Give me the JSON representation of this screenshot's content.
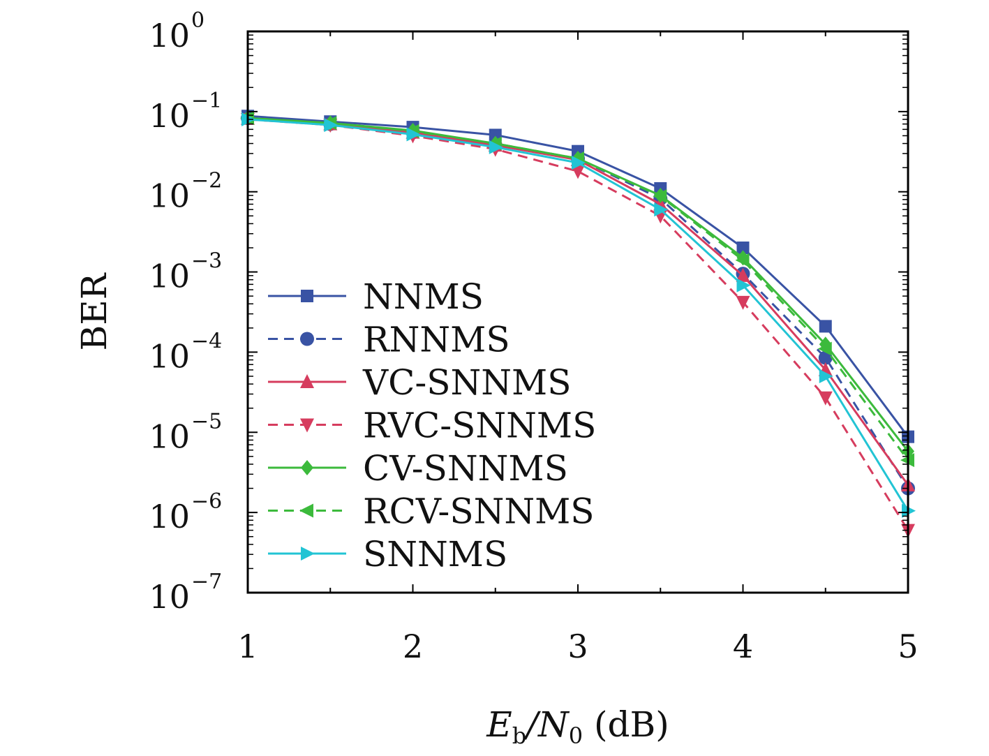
{
  "chart_data": {
    "type": "line",
    "title": "",
    "xlabel": {
      "main": "E",
      "sub": "b",
      "sep": "/N",
      "sub2": "0",
      "unit": " (dB)"
    },
    "ylabel": "BER",
    "yscale": "log",
    "xlim": [
      1,
      5
    ],
    "ylim": [
      1e-07,
      1
    ],
    "xticks": [
      "1",
      "2",
      "3",
      "4",
      "5"
    ],
    "yticks": [
      {
        "base": "10",
        "exp": "0"
      },
      {
        "base": "10",
        "exp": "−1"
      },
      {
        "base": "10",
        "exp": "−2"
      },
      {
        "base": "10",
        "exp": "−3"
      },
      {
        "base": "10",
        "exp": "−4"
      },
      {
        "base": "10",
        "exp": "−5"
      },
      {
        "base": "10",
        "exp": "−6"
      },
      {
        "base": "10",
        "exp": "−7"
      }
    ],
    "grid": false,
    "legend_position": "lower-left",
    "x": [
      1,
      1.5,
      2,
      2.5,
      3,
      3.5,
      4,
      4.5,
      5
    ],
    "series": [
      {
        "name": "NNMS",
        "color": "#3953a4",
        "dash": "solid",
        "marker": "square",
        "values": [
          0.088,
          0.075,
          0.064,
          0.051,
          0.032,
          0.011,
          0.002,
          0.00021,
          8.8e-06
        ]
      },
      {
        "name": "RNNMS",
        "color": "#3953a4",
        "dash": "dashed",
        "marker": "circle",
        "values": [
          0.083,
          0.07,
          0.055,
          0.038,
          0.026,
          0.0082,
          0.00095,
          8.5e-05,
          2e-06
        ]
      },
      {
        "name": "VC-SNNMS",
        "color": "#d63c5e",
        "dash": "solid",
        "marker": "triangle-up",
        "values": [
          0.082,
          0.07,
          0.055,
          0.038,
          0.025,
          0.007,
          0.0009,
          6e-05,
          2.2e-06
        ]
      },
      {
        "name": "RVC-SNNMS",
        "color": "#d63c5e",
        "dash": "dashed",
        "marker": "triangle-down",
        "values": [
          0.08,
          0.068,
          0.05,
          0.034,
          0.018,
          0.005,
          0.00042,
          2.7e-05,
          6e-07
        ]
      },
      {
        "name": "CV-SNNMS",
        "color": "#3cba3c",
        "dash": "solid",
        "marker": "diamond",
        "values": [
          0.083,
          0.072,
          0.058,
          0.04,
          0.026,
          0.009,
          0.0015,
          0.000125,
          5.8e-06
        ]
      },
      {
        "name": "RCV-SNNMS",
        "color": "#3cba3c",
        "dash": "dashed",
        "marker": "triangle-left",
        "values": [
          0.083,
          0.072,
          0.057,
          0.04,
          0.026,
          0.0088,
          0.0014,
          0.00011,
          4.5e-06
        ]
      },
      {
        "name": "SNNMS",
        "color": "#22c4d4",
        "dash": "solid",
        "marker": "triangle-right",
        "values": [
          0.08,
          0.068,
          0.052,
          0.036,
          0.023,
          0.006,
          0.00068,
          5e-05,
          1.05e-06
        ]
      }
    ]
  }
}
